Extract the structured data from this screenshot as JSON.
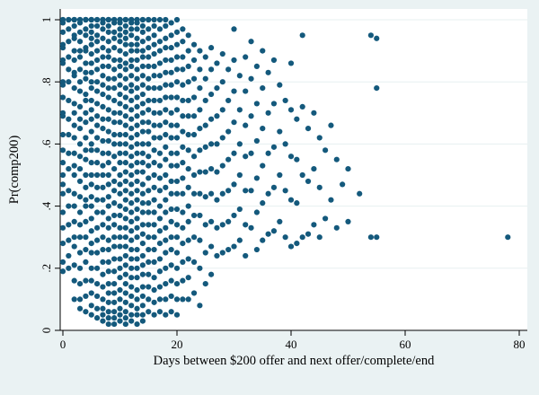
{
  "figure": {
    "background": "#eaf2f3",
    "plot_background": "#ffffff",
    "marker_color": "#14597c",
    "axis_color": "#000000",
    "grid_color": "#e7f0f1"
  },
  "chart_data": {
    "type": "scatter",
    "title": "",
    "xlabel": "Days between $200 offer and next offer/complete/end",
    "ylabel": "Pr(comp200)",
    "xlim": [
      0,
      80
    ],
    "ylim": [
      0,
      1
    ],
    "x_ticks": [
      0,
      20,
      40,
      60,
      80
    ],
    "x_tick_labels": [
      "0",
      "20",
      "40",
      "60",
      "80"
    ],
    "y_ticks": [
      0,
      0.2,
      0.4,
      0.6,
      0.8,
      1
    ],
    "y_tick_labels": [
      "0",
      ".2",
      ".4",
      ".6",
      ".8",
      "1"
    ],
    "grid": "horizontal",
    "legend": "none",
    "marker": "filled-circle",
    "columns": [
      {
        "x": 0,
        "ys": [
          1,
          1,
          0.99,
          0.96,
          0.92,
          0.91,
          0.87,
          0.86,
          0.8,
          0.79,
          0.75,
          0.7,
          0.69,
          0.63,
          0.58,
          0.54,
          0.5,
          0.47,
          0.44,
          0.38,
          0.33,
          0.28,
          0.22,
          0.19
        ]
      },
      {
        "x": 1,
        "ys": [
          1,
          1,
          0.97,
          0.93,
          0.88,
          0.84,
          0.8,
          0.74,
          0.68,
          0.63,
          0.57,
          0.52,
          0.45,
          0.4,
          0.34,
          0.29,
          0.24,
          0.2
        ]
      },
      {
        "x": 2,
        "ys": [
          1,
          1,
          1,
          0.98,
          0.95,
          0.94,
          0.9,
          0.87,
          0.83,
          0.82,
          0.78,
          0.73,
          0.7,
          0.66,
          0.62,
          0.57,
          0.53,
          0.5,
          0.44,
          0.4,
          0.35,
          0.3,
          0.27,
          0.21,
          0.16,
          0.1
        ]
      },
      {
        "x": 3,
        "ys": [
          1,
          1,
          0.99,
          0.96,
          0.93,
          0.9,
          0.88,
          0.84,
          0.8,
          0.77,
          0.72,
          0.68,
          0.65,
          0.6,
          0.56,
          0.52,
          0.48,
          0.43,
          0.38,
          0.34,
          0.3,
          0.25,
          0.2,
          0.15,
          0.1,
          0.07
        ]
      },
      {
        "x": 4,
        "ys": [
          1,
          1,
          1,
          0.97,
          0.95,
          0.91,
          0.9,
          0.86,
          0.83,
          0.81,
          0.76,
          0.74,
          0.7,
          0.67,
          0.62,
          0.58,
          0.55,
          0.5,
          0.46,
          0.42,
          0.4,
          0.35,
          0.3,
          0.26,
          0.22,
          0.16,
          0.11,
          0.06
        ]
      },
      {
        "x": 5,
        "ys": [
          1,
          1,
          1,
          0.98,
          0.96,
          0.94,
          0.92,
          0.89,
          0.86,
          0.83,
          0.8,
          0.78,
          0.74,
          0.71,
          0.68,
          0.64,
          0.6,
          0.58,
          0.54,
          0.5,
          0.47,
          0.43,
          0.4,
          0.36,
          0.32,
          0.28,
          0.25,
          0.2,
          0.16,
          0.12,
          0.08,
          0.05
        ]
      },
      {
        "x": 6,
        "ys": [
          1,
          1,
          0.98,
          0.95,
          0.93,
          0.9,
          0.87,
          0.84,
          0.8,
          0.77,
          0.73,
          0.69,
          0.66,
          0.62,
          0.58,
          0.54,
          0.5,
          0.46,
          0.42,
          0.38,
          0.33,
          0.29,
          0.25,
          0.2,
          0.15,
          0.11,
          0.07,
          0.04
        ]
      },
      {
        "x": 7,
        "ys": [
          1,
          1,
          1,
          0.99,
          0.97,
          0.94,
          0.91,
          0.88,
          0.85,
          0.82,
          0.79,
          0.76,
          0.72,
          0.68,
          0.65,
          0.61,
          0.57,
          0.53,
          0.5,
          0.46,
          0.42,
          0.38,
          0.34,
          0.3,
          0.26,
          0.22,
          0.18,
          0.14,
          0.1,
          0.07,
          0.05,
          0.03
        ]
      },
      {
        "x": 8,
        "ys": [
          1,
          1,
          1,
          0.98,
          0.96,
          0.93,
          0.9,
          0.88,
          0.85,
          0.81,
          0.78,
          0.75,
          0.71,
          0.68,
          0.64,
          0.61,
          0.57,
          0.54,
          0.5,
          0.47,
          0.43,
          0.4,
          0.36,
          0.33,
          0.29,
          0.26,
          0.22,
          0.19,
          0.15,
          0.12,
          0.09,
          0.06,
          0.04,
          0.02
        ]
      },
      {
        "x": 9,
        "ys": [
          1,
          1,
          0.99,
          0.96,
          0.94,
          0.91,
          0.87,
          0.84,
          0.81,
          0.78,
          0.74,
          0.7,
          0.67,
          0.63,
          0.6,
          0.56,
          0.52,
          0.48,
          0.45,
          0.41,
          0.37,
          0.34,
          0.3,
          0.27,
          0.23,
          0.19,
          0.15,
          0.12,
          0.09,
          0.06,
          0.04,
          0.02
        ]
      },
      {
        "x": 10,
        "ys": [
          1,
          1,
          1,
          0.99,
          0.97,
          0.95,
          0.93,
          0.9,
          0.87,
          0.85,
          0.82,
          0.79,
          0.76,
          0.73,
          0.7,
          0.67,
          0.63,
          0.6,
          0.57,
          0.54,
          0.5,
          0.47,
          0.44,
          0.4,
          0.37,
          0.33,
          0.3,
          0.27,
          0.23,
          0.2,
          0.17,
          0.13,
          0.1,
          0.07,
          0.05,
          0.03
        ]
      },
      {
        "x": 11,
        "ys": [
          1,
          1,
          1,
          0.98,
          0.96,
          0.94,
          0.92,
          0.89,
          0.86,
          0.84,
          0.81,
          0.78,
          0.75,
          0.72,
          0.69,
          0.66,
          0.63,
          0.6,
          0.57,
          0.54,
          0.51,
          0.48,
          0.45,
          0.42,
          0.39,
          0.36,
          0.33,
          0.3,
          0.27,
          0.24,
          0.21,
          0.18,
          0.15,
          0.12,
          0.09,
          0.06,
          0.04,
          0.02
        ]
      },
      {
        "x": 12,
        "ys": [
          1,
          1,
          1,
          0.99,
          0.97,
          0.95,
          0.92,
          0.9,
          0.87,
          0.85,
          0.82,
          0.79,
          0.77,
          0.74,
          0.71,
          0.68,
          0.65,
          0.62,
          0.59,
          0.56,
          0.53,
          0.5,
          0.47,
          0.44,
          0.41,
          0.38,
          0.35,
          0.32,
          0.29,
          0.26,
          0.23,
          0.2,
          0.17,
          0.14,
          0.11,
          0.08,
          0.05,
          0.03
        ]
      },
      {
        "x": 13,
        "ys": [
          1,
          1,
          0.99,
          0.97,
          0.94,
          0.92,
          0.9,
          0.87,
          0.84,
          0.81,
          0.78,
          0.75,
          0.72,
          0.69,
          0.66,
          0.63,
          0.6,
          0.57,
          0.54,
          0.51,
          0.48,
          0.45,
          0.42,
          0.39,
          0.36,
          0.33,
          0.3,
          0.26,
          0.23,
          0.2,
          0.17,
          0.13,
          0.1,
          0.07,
          0.05,
          0.02
        ]
      },
      {
        "x": 14,
        "ys": [
          1,
          1,
          0.98,
          0.96,
          0.93,
          0.9,
          0.88,
          0.85,
          0.82,
          0.79,
          0.76,
          0.73,
          0.7,
          0.67,
          0.64,
          0.6,
          0.57,
          0.54,
          0.51,
          0.47,
          0.44,
          0.41,
          0.38,
          0.34,
          0.31,
          0.28,
          0.24,
          0.21,
          0.18,
          0.14,
          0.11,
          0.08,
          0.05,
          0.03
        ]
      },
      {
        "x": 15,
        "ys": [
          1,
          1,
          0.97,
          0.94,
          0.91,
          0.88,
          0.85,
          0.81,
          0.78,
          0.74,
          0.71,
          0.67,
          0.64,
          0.6,
          0.56,
          0.53,
          0.49,
          0.45,
          0.41,
          0.38,
          0.34,
          0.3,
          0.26,
          0.22,
          0.18,
          0.14,
          0.1,
          0.06
        ]
      },
      {
        "x": 16,
        "ys": [
          1,
          0.98,
          0.95,
          0.92,
          0.89,
          0.85,
          0.82,
          0.78,
          0.74,
          0.7,
          0.66,
          0.62,
          0.58,
          0.54,
          0.5,
          0.46,
          0.42,
          0.38,
          0.34,
          0.3,
          0.26,
          0.22,
          0.17,
          0.13,
          0.09,
          0.05
        ]
      },
      {
        "x": 17,
        "ys": [
          1,
          0.97,
          0.93,
          0.9,
          0.86,
          0.82,
          0.78,
          0.74,
          0.7,
          0.66,
          0.62,
          0.57,
          0.53,
          0.49,
          0.45,
          0.4,
          0.36,
          0.32,
          0.28,
          0.23,
          0.19,
          0.14,
          0.1,
          0.06
        ]
      },
      {
        "x": 18,
        "ys": [
          1,
          0.98,
          0.94,
          0.91,
          0.87,
          0.83,
          0.79,
          0.75,
          0.71,
          0.67,
          0.63,
          0.59,
          0.55,
          0.5,
          0.46,
          0.42,
          0.38,
          0.33,
          0.29,
          0.25,
          0.2,
          0.15,
          0.1,
          0.05
        ]
      },
      {
        "x": 19,
        "ys": [
          0.99,
          0.95,
          0.91,
          0.87,
          0.83,
          0.79,
          0.75,
          0.7,
          0.66,
          0.62,
          0.57,
          0.53,
          0.48,
          0.44,
          0.39,
          0.35,
          0.3,
          0.26,
          0.21,
          0.16,
          0.11,
          0.06
        ]
      },
      {
        "x": 20,
        "ys": [
          1,
          0.96,
          0.92,
          0.88,
          0.84,
          0.8,
          0.75,
          0.71,
          0.66,
          0.62,
          0.57,
          0.53,
          0.48,
          0.44,
          0.39,
          0.34,
          0.3,
          0.25,
          0.2,
          0.15,
          0.1,
          0.05
        ]
      },
      {
        "x": 21,
        "ys": [
          0.97,
          0.93,
          0.88,
          0.84,
          0.79,
          0.74,
          0.69,
          0.64,
          0.59,
          0.54,
          0.49,
          0.44,
          0.38,
          0.33,
          0.28,
          0.22,
          0.16,
          0.1
        ]
      },
      {
        "x": 22,
        "ys": [
          0.95,
          0.9,
          0.85,
          0.8,
          0.74,
          0.69,
          0.63,
          0.58,
          0.52,
          0.46,
          0.4,
          0.35,
          0.29,
          0.23,
          0.17,
          0.1
        ]
      },
      {
        "x": 23,
        "ys": [
          0.92,
          0.87,
          0.81,
          0.75,
          0.69,
          0.63,
          0.56,
          0.5,
          0.44,
          0.37,
          0.3,
          0.22,
          0.12
        ]
      },
      {
        "x": 24,
        "ys": [
          0.9,
          0.84,
          0.78,
          0.71,
          0.65,
          0.58,
          0.51,
          0.44,
          0.37,
          0.29,
          0.2,
          0.08
        ]
      },
      {
        "x": 25,
        "ys": [
          0.88,
          0.81,
          0.74,
          0.66,
          0.59,
          0.51,
          0.43,
          0.34,
          0.25,
          0.15
        ]
      },
      {
        "x": 26,
        "ys": [
          0.91,
          0.84,
          0.76,
          0.68,
          0.6,
          0.52,
          0.44,
          0.35,
          0.27,
          0.18
        ]
      },
      {
        "x": 27,
        "ys": [
          0.86,
          0.78,
          0.69,
          0.6,
          0.51,
          0.42,
          0.33,
          0.24
        ]
      },
      {
        "x": 28,
        "ys": [
          0.89,
          0.8,
          0.71,
          0.62,
          0.53,
          0.44,
          0.34,
          0.25
        ]
      },
      {
        "x": 29,
        "ys": [
          0.84,
          0.74,
          0.64,
          0.55,
          0.45,
          0.35,
          0.26
        ]
      },
      {
        "x": 30,
        "ys": [
          0.97,
          0.87,
          0.77,
          0.67,
          0.57,
          0.47,
          0.37,
          0.27
        ]
      },
      {
        "x": 31,
        "ys": [
          0.82,
          0.71,
          0.6,
          0.5,
          0.39,
          0.29
        ]
      },
      {
        "x": 32,
        "ys": [
          0.88,
          0.77,
          0.66,
          0.56,
          0.45,
          0.34,
          0.24
        ]
      },
      {
        "x": 33,
        "ys": [
          0.93,
          0.81,
          0.69,
          0.57,
          0.45,
          0.33
        ]
      },
      {
        "x": 34,
        "ys": [
          0.85,
          0.73,
          0.61,
          0.49,
          0.38,
          0.26
        ]
      },
      {
        "x": 35,
        "ys": [
          0.9,
          0.78,
          0.65,
          0.53,
          0.41,
          0.29
        ]
      },
      {
        "x": 36,
        "ys": [
          0.83,
          0.7,
          0.57,
          0.44,
          0.31
        ]
      },
      {
        "x": 37,
        "ys": [
          0.87,
          0.73,
          0.59,
          0.46,
          0.32
        ]
      },
      {
        "x": 38,
        "ys": [
          0.79,
          0.64,
          0.5,
          0.35
        ]
      },
      {
        "x": 39,
        "ys": [
          0.74,
          0.6,
          0.45,
          0.3
        ]
      },
      {
        "x": 40,
        "ys": [
          0.86,
          0.71,
          0.56,
          0.42,
          0.27
        ]
      },
      {
        "x": 41,
        "ys": [
          0.68,
          0.55,
          0.41,
          0.28
        ]
      },
      {
        "x": 42,
        "ys": [
          0.95,
          0.72,
          0.5,
          0.3
        ]
      },
      {
        "x": 43,
        "ys": [
          0.65,
          0.48,
          0.31
        ]
      },
      {
        "x": 44,
        "ys": [
          0.7,
          0.52,
          0.34
        ]
      },
      {
        "x": 45,
        "ys": [
          0.62,
          0.46,
          0.3
        ]
      },
      {
        "x": 46,
        "ys": [
          0.58,
          0.36
        ]
      },
      {
        "x": 47,
        "ys": [
          0.66,
          0.42
        ]
      },
      {
        "x": 48,
        "ys": [
          0.55,
          0.33
        ]
      },
      {
        "x": 49,
        "ys": [
          0.47
        ]
      },
      {
        "x": 50,
        "ys": [
          0.52,
          0.35
        ]
      },
      {
        "x": 52,
        "ys": [
          0.44
        ]
      },
      {
        "x": 54,
        "ys": [
          0.95,
          0.3
        ]
      },
      {
        "x": 55,
        "ys": [
          0.94,
          0.78,
          0.3
        ]
      },
      {
        "x": 78,
        "ys": [
          0.3
        ]
      }
    ]
  }
}
